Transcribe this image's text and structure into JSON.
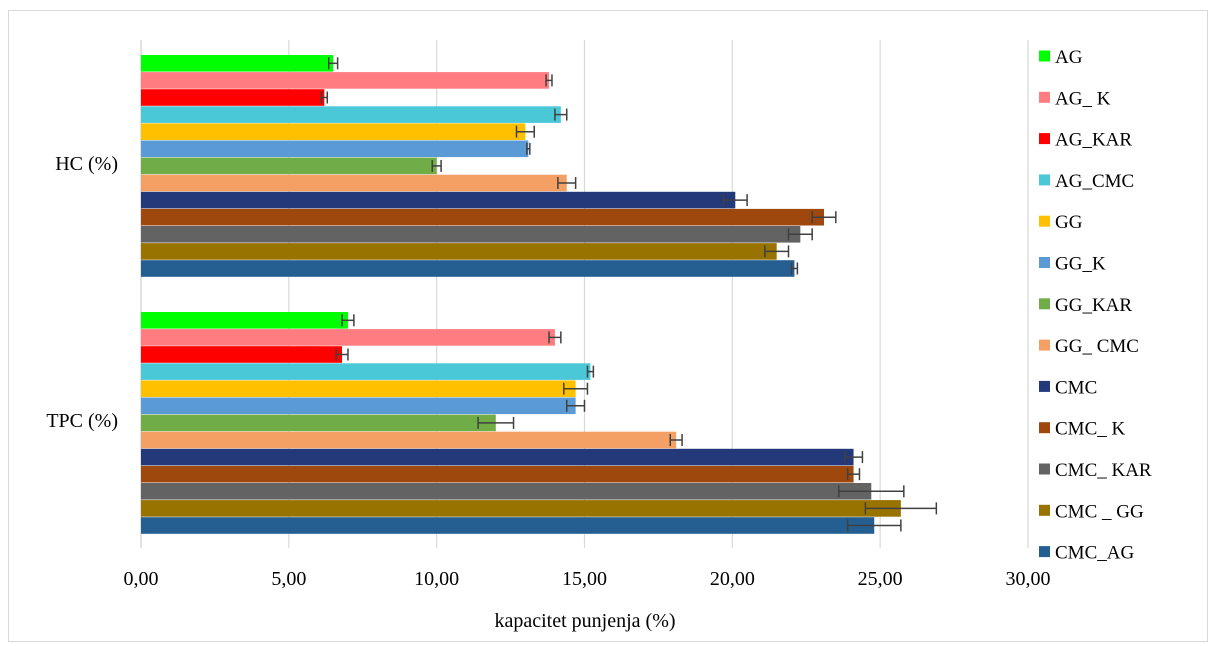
{
  "chart_data": {
    "type": "bar",
    "orientation": "horizontal",
    "title": "",
    "xlabel": "kapacitet punjenja (%)",
    "ylabel": "",
    "xlim": [
      0,
      30
    ],
    "x_ticks": [
      "0,00",
      "5,00",
      "10,00",
      "15,00",
      "20,00",
      "25,00",
      "30,00"
    ],
    "grid": true,
    "legend_position": "right",
    "error_bars": true,
    "categories": [
      "HC (%)",
      "TPC (%)"
    ],
    "series": [
      {
        "name": "AG",
        "color": "#00ff00",
        "values": [
          6.5,
          7.0
        ],
        "errors": [
          0.15,
          0.2
        ]
      },
      {
        "name": "AG_ K",
        "color": "#ff7c80",
        "values": [
          13.8,
          14.0
        ],
        "errors": [
          0.1,
          0.2
        ]
      },
      {
        "name": "AG_KAR",
        "color": "#ff0000",
        "values": [
          6.2,
          6.8
        ],
        "errors": [
          0.1,
          0.2
        ]
      },
      {
        "name": "AG_CMC",
        "color": "#4bc8d8",
        "values": [
          14.2,
          15.2
        ],
        "errors": [
          0.2,
          0.1
        ]
      },
      {
        "name": "GG",
        "color": "#ffc000",
        "values": [
          13.0,
          14.7
        ],
        "errors": [
          0.3,
          0.4
        ]
      },
      {
        "name": "GG_K",
        "color": "#5b9bd5",
        "values": [
          13.1,
          14.7
        ],
        "errors": [
          0.05,
          0.3
        ]
      },
      {
        "name": "GG_KAR",
        "color": "#70ad47",
        "values": [
          10.0,
          12.0
        ],
        "errors": [
          0.15,
          0.6
        ]
      },
      {
        "name": "GG_ CMC",
        "color": "#f4a064",
        "values": [
          14.4,
          18.1
        ],
        "errors": [
          0.3,
          0.2
        ]
      },
      {
        "name": "CMC",
        "color": "#23397a",
        "values": [
          20.1,
          24.1
        ],
        "errors": [
          0.4,
          0.3
        ]
      },
      {
        "name": "CMC_ K",
        "color": "#9e480e",
        "values": [
          23.1,
          24.1
        ],
        "errors": [
          0.4,
          0.2
        ]
      },
      {
        "name": "CMC_ KAR",
        "color": "#636363",
        "values": [
          22.3,
          24.7
        ],
        "errors": [
          0.4,
          1.1
        ]
      },
      {
        "name": "CMC _ GG",
        "color": "#997300",
        "values": [
          21.5,
          25.7
        ],
        "errors": [
          0.4,
          1.2
        ]
      },
      {
        "name": "CMC_AG",
        "color": "#255e91",
        "values": [
          22.1,
          24.8
        ],
        "errors": [
          0.1,
          0.9
        ]
      }
    ]
  },
  "colors": {
    "gridline": "#d9d9d9",
    "errorbar": "#404040"
  }
}
